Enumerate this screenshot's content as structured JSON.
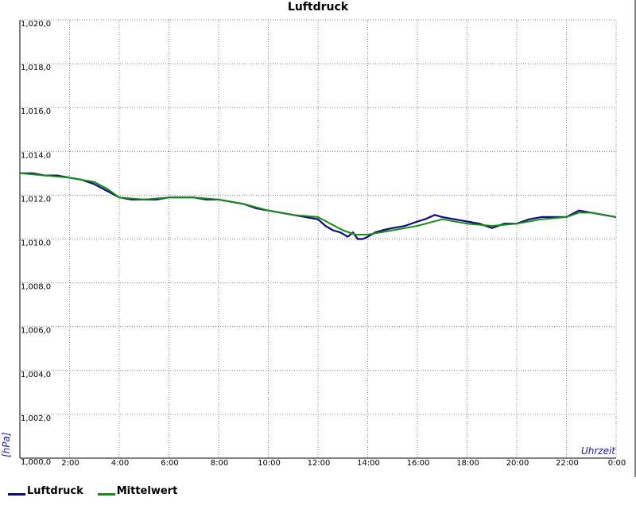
{
  "chart_data": {
    "type": "line",
    "title": "Luftdruck",
    "ylabel": "[hPa]",
    "xlabel": "Uhrzeit",
    "ylim": [
      1000,
      1020
    ],
    "xlim": [
      0,
      24
    ],
    "y_ticks": [
      "1,000,0",
      "1,002,0",
      "1,004,0",
      "1,006,0",
      "1,008,0",
      "1,010,0",
      "1,012,0",
      "1,014,0",
      "1,016,0",
      "1,018,0",
      "1,020,0"
    ],
    "x_ticks": [
      "2:00",
      "4:00",
      "6:00",
      "8:00",
      "10:00",
      "12:00",
      "14:00",
      "16:00",
      "18:00",
      "20:00",
      "22:00",
      "0:00"
    ],
    "grid": true,
    "legend_position": "bottom-left",
    "series": [
      {
        "name": "Luftdruck",
        "color": "#0b0b7a",
        "x": [
          0,
          0.5,
          1,
          1.5,
          2,
          2.5,
          3,
          3.5,
          4,
          4.5,
          5,
          5.5,
          6,
          6.5,
          7,
          7.5,
          8,
          8.5,
          9,
          9.5,
          10,
          10.5,
          11,
          11.5,
          12,
          12.3,
          12.6,
          12.9,
          13.2,
          13.4,
          13.6,
          13.8,
          14,
          14.3,
          14.6,
          15,
          15.5,
          16,
          16.3,
          16.7,
          17,
          17.5,
          18,
          18.5,
          19,
          19.5,
          20,
          20.5,
          21,
          21.5,
          22,
          22.5,
          23,
          23.5,
          24
        ],
        "values": [
          1013.0,
          1013.0,
          1012.9,
          1012.9,
          1012.8,
          1012.7,
          1012.5,
          1012.2,
          1011.9,
          1011.8,
          1011.8,
          1011.8,
          1011.9,
          1011.9,
          1011.9,
          1011.8,
          1011.8,
          1011.7,
          1011.6,
          1011.4,
          1011.3,
          1011.2,
          1011.1,
          1011.0,
          1010.9,
          1010.6,
          1010.4,
          1010.3,
          1010.1,
          1010.3,
          1010.0,
          1010.0,
          1010.1,
          1010.3,
          1010.4,
          1010.5,
          1010.6,
          1010.8,
          1010.9,
          1011.1,
          1011.0,
          1010.9,
          1010.8,
          1010.7,
          1010.5,
          1010.7,
          1010.7,
          1010.9,
          1011.0,
          1011.0,
          1011.0,
          1011.3,
          1011.2,
          1011.1,
          1011.0
        ]
      },
      {
        "name": "Mittelwert",
        "color": "#1a8a1a",
        "x": [
          0,
          1,
          2,
          3,
          3.5,
          4,
          5,
          6,
          7,
          8,
          9,
          10,
          11,
          12,
          12.5,
          13,
          13.5,
          14,
          15,
          16,
          17,
          18,
          19,
          20,
          21,
          22,
          22.5,
          23,
          24
        ],
        "values": [
          1013.0,
          1012.9,
          1012.8,
          1012.6,
          1012.3,
          1011.9,
          1011.8,
          1011.9,
          1011.9,
          1011.8,
          1011.6,
          1011.3,
          1011.1,
          1011.0,
          1010.7,
          1010.4,
          1010.2,
          1010.2,
          1010.4,
          1010.6,
          1010.9,
          1010.7,
          1010.6,
          1010.7,
          1010.9,
          1011.0,
          1011.2,
          1011.2,
          1011.0
        ]
      }
    ]
  }
}
